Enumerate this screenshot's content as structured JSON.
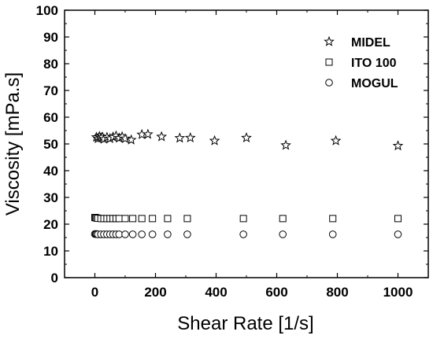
{
  "chart_data": {
    "type": "scatter",
    "title": "",
    "xlabel": "Shear Rate [1/s]",
    "ylabel": "Viscosity [mPa.s]",
    "xlim": [
      -100,
      1100
    ],
    "ylim": [
      0,
      100
    ],
    "xticks": [
      0,
      200,
      400,
      600,
      800,
      1000
    ],
    "yticks": [
      0,
      10,
      20,
      30,
      40,
      50,
      60,
      70,
      80,
      90,
      100
    ],
    "grid": false,
    "legend_position": "top-right",
    "series": [
      {
        "name": "MIDEL",
        "marker": "star",
        "color": "#000000",
        "points": [
          [
            5,
            52.5
          ],
          [
            10,
            52.0
          ],
          [
            15,
            52.8
          ],
          [
            20,
            52.3
          ],
          [
            25,
            52.6
          ],
          [
            30,
            51.8
          ],
          [
            40,
            52.5
          ],
          [
            50,
            52.0
          ],
          [
            60,
            52.6
          ],
          [
            70,
            53.0
          ],
          [
            80,
            52.2
          ],
          [
            90,
            52.7
          ],
          [
            100,
            52.0
          ],
          [
            120,
            51.5
          ],
          [
            155,
            53.5
          ],
          [
            175,
            53.6
          ],
          [
            220,
            52.7
          ],
          [
            280,
            52.2
          ],
          [
            315,
            52.3
          ],
          [
            395,
            51.2
          ],
          [
            500,
            52.3
          ],
          [
            630,
            49.5
          ],
          [
            795,
            51.2
          ],
          [
            1000,
            49.3
          ]
        ]
      },
      {
        "name": "ITO 100",
        "marker": "square",
        "color": "#000000",
        "points": [
          [
            0,
            22.5
          ],
          [
            3,
            22.4
          ],
          [
            6,
            22.3
          ],
          [
            10,
            22.2
          ],
          [
            20,
            22.1
          ],
          [
            30,
            22.1
          ],
          [
            40,
            22.1
          ],
          [
            50,
            22.1
          ],
          [
            60,
            22.1
          ],
          [
            70,
            22.1
          ],
          [
            80,
            22.1
          ],
          [
            100,
            22.1
          ],
          [
            125,
            22.1
          ],
          [
            155,
            22.1
          ],
          [
            190,
            22.1
          ],
          [
            240,
            22.1
          ],
          [
            305,
            22.1
          ],
          [
            490,
            22.1
          ],
          [
            620,
            22.1
          ],
          [
            785,
            22.1
          ],
          [
            1000,
            22.1
          ]
        ]
      },
      {
        "name": "MOGUL",
        "marker": "circle",
        "color": "#000000",
        "points": [
          [
            0,
            16.3
          ],
          [
            3,
            16.3
          ],
          [
            6,
            16.3
          ],
          [
            10,
            16.2
          ],
          [
            20,
            16.2
          ],
          [
            30,
            16.2
          ],
          [
            40,
            16.2
          ],
          [
            50,
            16.2
          ],
          [
            60,
            16.2
          ],
          [
            70,
            16.2
          ],
          [
            80,
            16.2
          ],
          [
            100,
            16.2
          ],
          [
            125,
            16.2
          ],
          [
            155,
            16.2
          ],
          [
            190,
            16.2
          ],
          [
            240,
            16.2
          ],
          [
            305,
            16.2
          ],
          [
            490,
            16.2
          ],
          [
            620,
            16.2
          ],
          [
            785,
            16.2
          ],
          [
            1000,
            16.2
          ]
        ]
      }
    ]
  }
}
